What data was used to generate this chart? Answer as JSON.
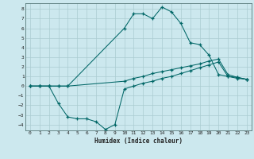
{
  "xlabel": "Humidex (Indice chaleur)",
  "bg_color": "#cce8ee",
  "line_color": "#006666",
  "grid_color": "#aaccd0",
  "xlim": [
    -0.5,
    23.5
  ],
  "ylim": [
    -4.6,
    8.6
  ],
  "xticks": [
    0,
    1,
    2,
    3,
    4,
    5,
    6,
    7,
    8,
    9,
    10,
    11,
    12,
    13,
    14,
    15,
    16,
    17,
    18,
    19,
    20,
    21,
    22,
    23
  ],
  "yticks": [
    -4,
    -3,
    -2,
    -1,
    0,
    1,
    2,
    3,
    4,
    5,
    6,
    7,
    8
  ],
  "line1_x": [
    0,
    1,
    2,
    3,
    4,
    10,
    11,
    12,
    13,
    14,
    15,
    16,
    17,
    18,
    19,
    20,
    21,
    22,
    23
  ],
  "line1_y": [
    0,
    0,
    0,
    0,
    0,
    6.0,
    7.5,
    7.5,
    7.0,
    8.2,
    7.7,
    6.5,
    4.5,
    4.3,
    3.2,
    1.2,
    1.0,
    0.9,
    0.7
  ],
  "line2_x": [
    0,
    1,
    2,
    3,
    4,
    10,
    11,
    12,
    13,
    14,
    15,
    16,
    17,
    18,
    19,
    20,
    21,
    22,
    23
  ],
  "line2_y": [
    0,
    0,
    0,
    0,
    0,
    0.5,
    0.8,
    1.0,
    1.3,
    1.5,
    1.7,
    1.9,
    2.1,
    2.3,
    2.6,
    2.8,
    1.2,
    0.9,
    0.7
  ],
  "line3_x": [
    0,
    1,
    2,
    3,
    4,
    5,
    6,
    7,
    8,
    9,
    10,
    11,
    12,
    13,
    14,
    15,
    16,
    17,
    18,
    19,
    20,
    21,
    22,
    23
  ],
  "line3_y": [
    0,
    0,
    0,
    -1.8,
    -3.2,
    -3.4,
    -3.4,
    -3.7,
    -4.5,
    -4.0,
    -0.3,
    0.0,
    0.3,
    0.5,
    0.8,
    1.0,
    1.3,
    1.6,
    1.9,
    2.2,
    2.5,
    1.0,
    0.8,
    0.7
  ]
}
